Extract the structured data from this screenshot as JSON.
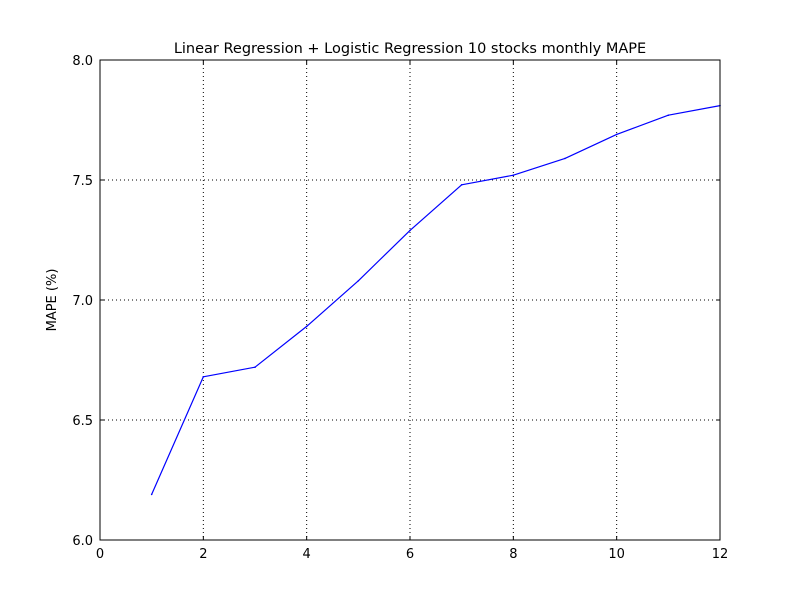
{
  "chart_data": {
    "type": "line",
    "title": "Linear Regression + Logistic Regression 10 stocks monthly MAPE",
    "xlabel": "",
    "ylabel": "MAPE (%)",
    "xlim": [
      0,
      12
    ],
    "ylim": [
      6.0,
      8.0
    ],
    "xticks": [
      0,
      2,
      4,
      6,
      8,
      10,
      12
    ],
    "xtick_labels": [
      "0",
      "2",
      "4",
      "6",
      "8",
      "10",
      "12"
    ],
    "yticks": [
      6.0,
      6.5,
      7.0,
      7.5,
      8.0
    ],
    "ytick_labels": [
      "6.0",
      "6.5",
      "7.0",
      "7.5",
      "8.0"
    ],
    "grid": true,
    "line_color": "#0000ff",
    "x": [
      1,
      2,
      3,
      4,
      5,
      6,
      7,
      8,
      9,
      10,
      11,
      12
    ],
    "series": [
      {
        "values": [
          6.19,
          6.68,
          6.72,
          6.89,
          7.08,
          7.29,
          7.48,
          7.52,
          7.59,
          7.69,
          7.77,
          7.81
        ]
      }
    ]
  }
}
